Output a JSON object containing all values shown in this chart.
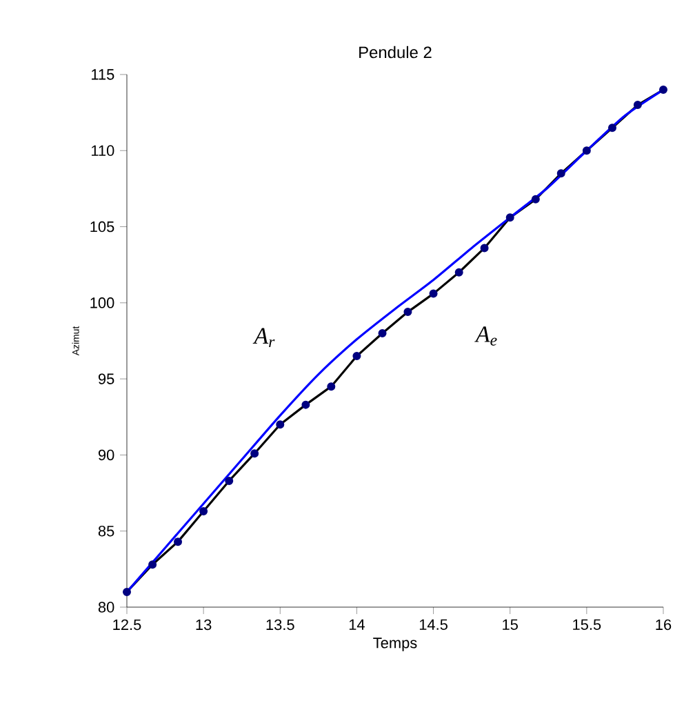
{
  "chart_data": {
    "type": "line",
    "title": "Pendule 2",
    "xlabel": "Temps",
    "ylabel": "Azimut",
    "xlim": [
      12.5,
      16
    ],
    "ylim": [
      80,
      115
    ],
    "xticks": [
      12.5,
      13,
      13.5,
      14,
      14.5,
      15,
      15.5,
      16
    ],
    "yticks": [
      80,
      85,
      90,
      95,
      100,
      105,
      110,
      115
    ],
    "grid": false,
    "annotations": [
      "A$_{r}$",
      "A$_{e}$"
    ],
    "series": [
      {
        "color": "#000000",
        "marker": "circle",
        "x": [
          12.5,
          12.667,
          12.833,
          13.0,
          13.167,
          13.333,
          13.5,
          13.667,
          13.833,
          14.0,
          14.167,
          14.333,
          14.5,
          14.667,
          14.833,
          15.0,
          15.167,
          15.333,
          15.5,
          15.667,
          15.833,
          16.0
        ],
        "values": [
          81.0,
          82.8,
          84.3,
          86.3,
          88.3,
          90.1,
          92.0,
          93.3,
          94.5,
          96.5,
          98.0,
          99.4,
          100.6,
          102.0,
          103.6,
          105.6,
          106.8,
          108.5,
          110.0,
          111.5,
          113.0,
          114.0
        ]
      },
      {
        "color": "#0000ff",
        "marker": "none",
        "x": [
          12.5,
          12.75,
          13.0,
          13.25,
          13.5,
          13.75,
          14.0,
          14.25,
          14.5,
          14.75,
          15.0,
          15.25,
          15.5,
          15.75,
          16.0
        ],
        "values": [
          81.0,
          83.9,
          86.8,
          89.7,
          92.6,
          95.3,
          97.6,
          99.6,
          101.5,
          103.6,
          105.6,
          107.6,
          110.0,
          112.3,
          114.0
        ]
      }
    ]
  }
}
